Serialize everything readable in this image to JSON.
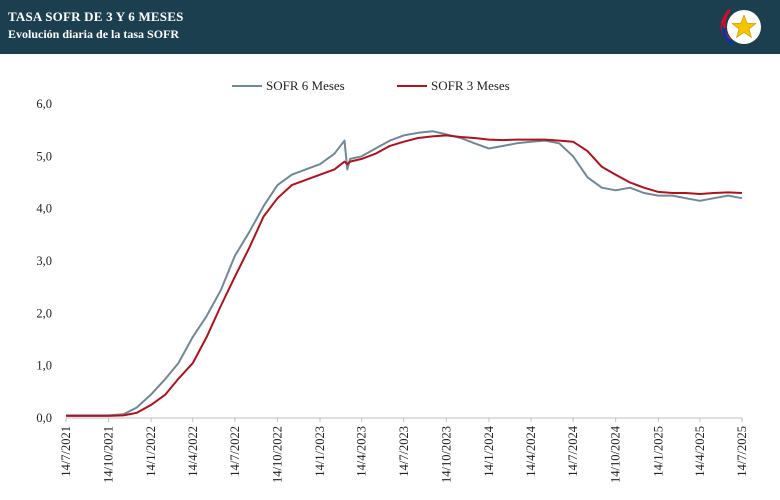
{
  "header": {
    "title": "TASA SOFR DE 3 Y 6 MESES",
    "subtitle": "Evolución diaria de la tasa SOFR",
    "logo_icon": "paraguay-star-emblem-icon"
  },
  "colors": {
    "header_bg": "#1c3f4f",
    "series_6m": "#708898",
    "series_3m": "#b0121c"
  },
  "chart_data": {
    "type": "line",
    "title": "TASA SOFR DE 3 Y 6 MESES",
    "subtitle": "Evolución diaria de la tasa SOFR",
    "xlabel": "",
    "ylabel": "",
    "ylim": [
      0,
      6
    ],
    "yticks": [
      "0,0",
      "1,0",
      "2,0",
      "3,0",
      "4,0",
      "5,0",
      "6,0"
    ],
    "xticks": [
      "14/7/2021",
      "14/10/2021",
      "14/1/2022",
      "14/4/2022",
      "14/7/2022",
      "14/10/2022",
      "14/1/2023",
      "14/4/2023",
      "14/7/2023",
      "14/10/2023",
      "14/1/2024",
      "14/4/2024",
      "14/7/2024",
      "14/10/2024",
      "14/1/2025",
      "14/4/2025",
      "14/7/2025"
    ],
    "grid": false,
    "legend": "top-center",
    "series": [
      {
        "name": "SOFR 6 Meses",
        "x": [
          "2021-07-14",
          "2021-10-14",
          "2021-11-15",
          "2021-12-14",
          "2022-01-14",
          "2022-02-14",
          "2022-03-14",
          "2022-04-14",
          "2022-05-14",
          "2022-06-14",
          "2022-07-14",
          "2022-08-14",
          "2022-09-14",
          "2022-10-14",
          "2022-11-14",
          "2022-12-14",
          "2023-01-14",
          "2023-02-14",
          "2023-03-08",
          "2023-03-14",
          "2023-03-20",
          "2023-04-14",
          "2023-05-14",
          "2023-06-14",
          "2023-07-14",
          "2023-08-14",
          "2023-09-14",
          "2023-10-14",
          "2023-11-14",
          "2023-12-14",
          "2024-01-14",
          "2024-02-14",
          "2024-03-14",
          "2024-04-14",
          "2024-05-14",
          "2024-06-14",
          "2024-07-14",
          "2024-08-14",
          "2024-09-14",
          "2024-10-14",
          "2024-11-14",
          "2024-12-14",
          "2025-01-14",
          "2025-02-14",
          "2025-03-14",
          "2025-04-14",
          "2025-05-14",
          "2025-06-14",
          "2025-07-14"
        ],
        "values": [
          0.05,
          0.05,
          0.07,
          0.2,
          0.45,
          0.75,
          1.05,
          1.55,
          1.95,
          2.45,
          3.1,
          3.55,
          4.05,
          4.45,
          4.65,
          4.75,
          4.85,
          5.05,
          5.3,
          4.75,
          4.95,
          5.0,
          5.15,
          5.3,
          5.4,
          5.45,
          5.48,
          5.42,
          5.35,
          5.25,
          5.15,
          5.2,
          5.25,
          5.28,
          5.3,
          5.25,
          5.0,
          4.6,
          4.4,
          4.35,
          4.4,
          4.3,
          4.25,
          4.25,
          4.2,
          4.15,
          4.2,
          4.25,
          4.2
        ]
      },
      {
        "name": "SOFR 3 Meses",
        "x": [
          "2021-07-14",
          "2021-10-14",
          "2021-11-15",
          "2021-12-14",
          "2022-01-14",
          "2022-02-14",
          "2022-03-14",
          "2022-04-14",
          "2022-05-14",
          "2022-06-14",
          "2022-07-14",
          "2022-08-14",
          "2022-09-14",
          "2022-10-14",
          "2022-11-14",
          "2022-12-14",
          "2023-01-14",
          "2023-02-14",
          "2023-03-08",
          "2023-03-14",
          "2023-03-20",
          "2023-04-14",
          "2023-05-14",
          "2023-06-14",
          "2023-07-14",
          "2023-08-14",
          "2023-09-14",
          "2023-10-14",
          "2023-11-14",
          "2023-12-14",
          "2024-01-14",
          "2024-02-14",
          "2024-03-14",
          "2024-04-14",
          "2024-05-14",
          "2024-06-14",
          "2024-07-14",
          "2024-08-14",
          "2024-09-14",
          "2024-10-14",
          "2024-11-14",
          "2024-12-14",
          "2025-01-14",
          "2025-02-14",
          "2025-03-14",
          "2025-04-14",
          "2025-05-14",
          "2025-06-14",
          "2025-07-14"
        ],
        "values": [
          0.04,
          0.04,
          0.05,
          0.1,
          0.25,
          0.45,
          0.75,
          1.05,
          1.55,
          2.15,
          2.7,
          3.25,
          3.85,
          4.2,
          4.45,
          4.55,
          4.65,
          4.75,
          4.9,
          4.85,
          4.9,
          4.95,
          5.05,
          5.2,
          5.28,
          5.35,
          5.38,
          5.4,
          5.37,
          5.35,
          5.32,
          5.31,
          5.32,
          5.32,
          5.32,
          5.3,
          5.28,
          5.1,
          4.8,
          4.65,
          4.5,
          4.4,
          4.32,
          4.3,
          4.3,
          4.28,
          4.3,
          4.31,
          4.3
        ]
      }
    ]
  }
}
